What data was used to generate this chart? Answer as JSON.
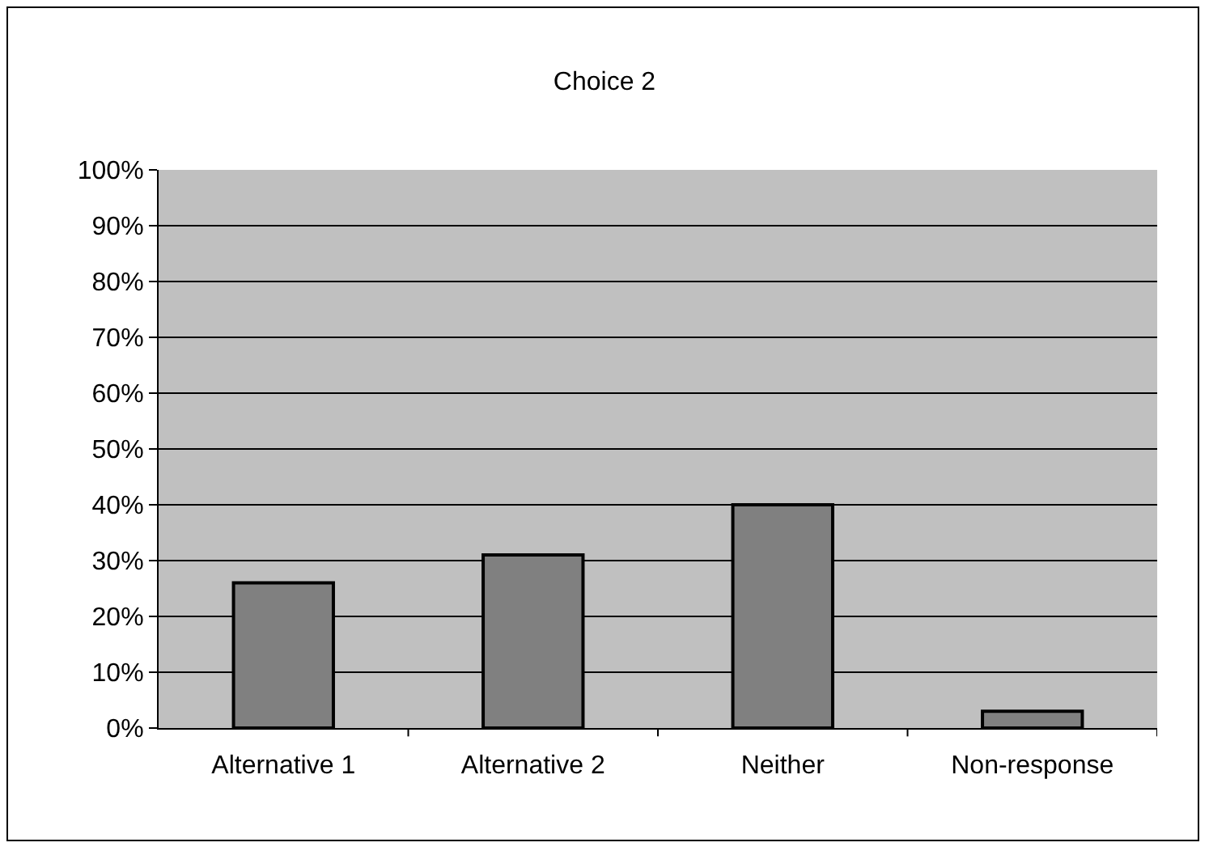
{
  "chart_data": {
    "type": "bar",
    "title": "Choice 2",
    "categories": [
      "Alternative 1",
      "Alternative 2",
      "Neither",
      "Non-response"
    ],
    "values": [
      26,
      31,
      40,
      3
    ],
    "color": "#808080",
    "ylim": [
      0,
      100
    ],
    "yticks": [
      {
        "value": 0,
        "label": "0%"
      },
      {
        "value": 10,
        "label": "10%"
      },
      {
        "value": 20,
        "label": "20%"
      },
      {
        "value": 30,
        "label": "30%"
      },
      {
        "value": 40,
        "label": "40%"
      },
      {
        "value": 50,
        "label": "50%"
      },
      {
        "value": 60,
        "label": "60%"
      },
      {
        "value": 70,
        "label": "70%"
      },
      {
        "value": 80,
        "label": "80%"
      },
      {
        "value": 90,
        "label": "90%"
      },
      {
        "value": 100,
        "label": "100%"
      }
    ],
    "grid": "y"
  }
}
